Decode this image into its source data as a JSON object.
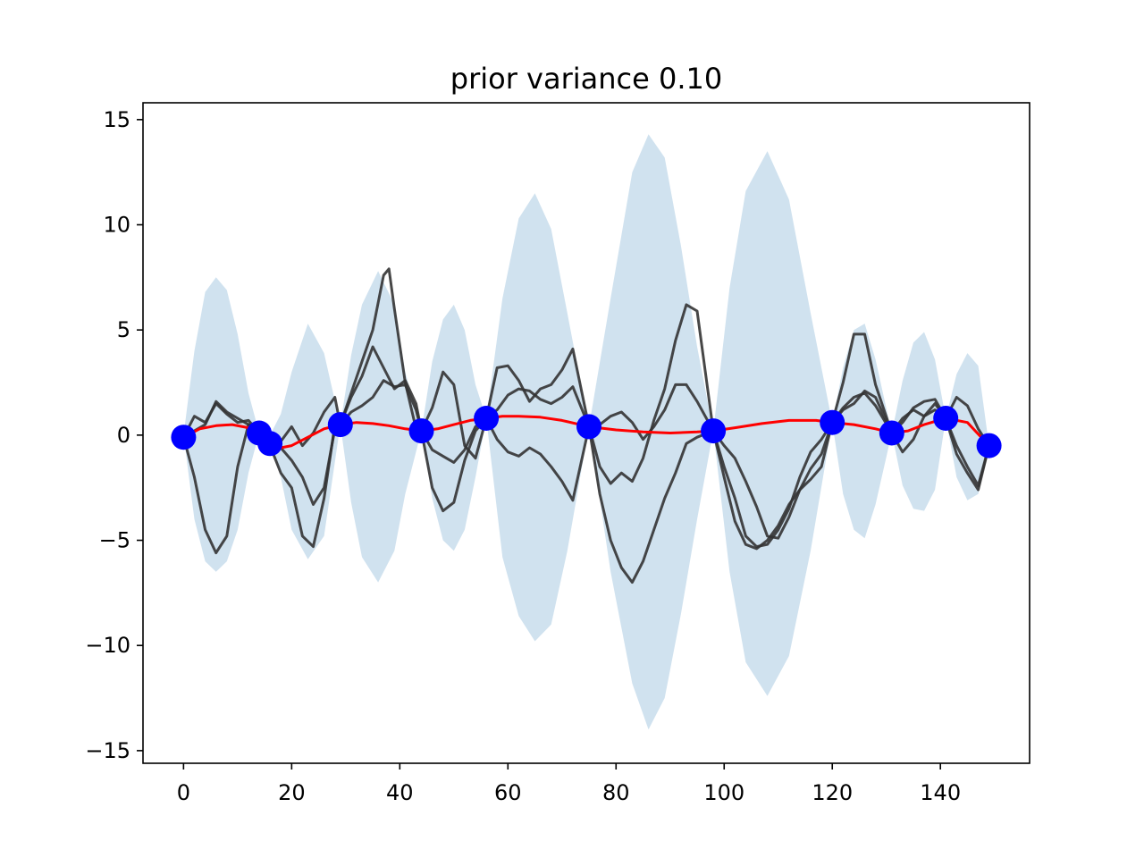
{
  "chart_data": {
    "type": "line",
    "title": "prior variance 0.10",
    "xlabel": "",
    "ylabel": "",
    "xlim": [
      -7.5,
      156.5
    ],
    "ylim": [
      -15.6,
      15.8
    ],
    "x_ticks": [
      0,
      20,
      40,
      60,
      80,
      100,
      120,
      140
    ],
    "y_ticks": [
      -15,
      -10,
      -5,
      0,
      5,
      10,
      15
    ],
    "x_tick_labels": [
      "0",
      "20",
      "40",
      "60",
      "80",
      "100",
      "120",
      "140"
    ],
    "y_tick_labels": [
      "−15",
      "−10",
      "−5",
      "0",
      "5",
      "10",
      "15"
    ],
    "grid": false,
    "legend": "none",
    "colors": {
      "band": "#d0e2ef",
      "mean": "#ff0000",
      "samples": "#333333",
      "observations": "#0000ff"
    },
    "observations": {
      "x": [
        0,
        14,
        16,
        29,
        44,
        56,
        75,
        98,
        120,
        131,
        141,
        149
      ],
      "y": [
        -0.1,
        0.1,
        -0.4,
        0.5,
        0.2,
        0.8,
        0.4,
        0.2,
        0.6,
        0.1,
        0.8,
        -0.5
      ]
    },
    "uncertainty_band": {
      "x": [
        0,
        1,
        2,
        4,
        6,
        8,
        10,
        12,
        14,
        16,
        18,
        20,
        23,
        26,
        29,
        31,
        33,
        36,
        39,
        41,
        44,
        46,
        48,
        50,
        52,
        54,
        56,
        59,
        62,
        65,
        68,
        71,
        75,
        79,
        83,
        86,
        89,
        92,
        95,
        98,
        101,
        104,
        108,
        112,
        116,
        120,
        122,
        124,
        126,
        128,
        131,
        133,
        135,
        137,
        139,
        141,
        143,
        145,
        147,
        149
      ],
      "upper": [
        0,
        2,
        4,
        6.8,
        7.5,
        6.9,
        4.8,
        2,
        0.1,
        0,
        1,
        3,
        5.3,
        3.9,
        0.5,
        3.8,
        6.2,
        7.8,
        6.2,
        3,
        0.2,
        3.5,
        5.5,
        6.2,
        5,
        2.4,
        0.8,
        6.5,
        10.3,
        11.5,
        9.8,
        5.8,
        0.4,
        6.5,
        12.5,
        14.3,
        13.2,
        9,
        4.2,
        0.2,
        7,
        11.6,
        13.5,
        11.2,
        5.8,
        0.6,
        3.2,
        5,
        5.3,
        3.6,
        0.1,
        2.6,
        4.4,
        4.9,
        3.6,
        0.8,
        2.9,
        3.9,
        3.3,
        -0.5
      ],
      "lower": [
        0,
        -2,
        -4,
        -6,
        -6.5,
        -6,
        -4.5,
        -1.8,
        0.1,
        -0.4,
        -2,
        -4.5,
        -5.9,
        -4.8,
        0.5,
        -3.2,
        -5.8,
        -7,
        -5.5,
        -2.8,
        0.2,
        -3,
        -5,
        -5.5,
        -4.5,
        -2,
        0.8,
        -5.8,
        -8.6,
        -9.8,
        -9,
        -5.5,
        0.4,
        -6.5,
        -11.8,
        -14,
        -12.5,
        -8.5,
        -4,
        0.2,
        -6.5,
        -10.8,
        -12.4,
        -10.5,
        -5.5,
        0.6,
        -2.8,
        -4.5,
        -4.9,
        -3.3,
        0.1,
        -2.4,
        -3.5,
        -3.6,
        -2.6,
        0.8,
        -2,
        -3.1,
        -2.8,
        -0.5
      ]
    },
    "series": [
      {
        "role": "mean",
        "x": [
          0,
          3,
          6,
          9,
          12,
          14,
          16,
          18,
          20,
          23,
          26,
          29,
          32,
          35,
          38,
          41,
          44,
          47,
          50,
          53,
          56,
          59,
          62,
          66,
          70,
          75,
          80,
          85,
          90,
          95,
          98,
          102,
          107,
          112,
          117,
          120,
          124,
          128,
          131,
          134,
          137,
          141,
          145,
          149
        ],
        "y": [
          -0.1,
          0.3,
          0.45,
          0.5,
          0.35,
          0.1,
          -0.4,
          -0.6,
          -0.5,
          -0.1,
          0.3,
          0.5,
          0.6,
          0.55,
          0.45,
          0.3,
          0.2,
          0.3,
          0.5,
          0.7,
          0.8,
          0.9,
          0.9,
          0.85,
          0.7,
          0.4,
          0.25,
          0.15,
          0.1,
          0.15,
          0.2,
          0.35,
          0.55,
          0.7,
          0.7,
          0.6,
          0.5,
          0.3,
          0.1,
          0.2,
          0.5,
          0.8,
          0.6,
          -0.5
        ]
      },
      {
        "role": "sample",
        "x": [
          0,
          2,
          4,
          6,
          8,
          10,
          12,
          14,
          16,
          18,
          20,
          22,
          24,
          26,
          28,
          29,
          31,
          33,
          35,
          37,
          38,
          39,
          41,
          43,
          44,
          46,
          48,
          50,
          52,
          54,
          56,
          58,
          60,
          62,
          64,
          66,
          68,
          70,
          72,
          75,
          77,
          79,
          81,
          83,
          85,
          87,
          89,
          91,
          93,
          95,
          98,
          100,
          102,
          104,
          106,
          108,
          110,
          112,
          114,
          116,
          118,
          120,
          122,
          124,
          126,
          128,
          131,
          133,
          135,
          137,
          139,
          141,
          143,
          145,
          147,
          149
        ],
        "y": [
          -0.1,
          -2,
          -4.5,
          -5.6,
          -4.8,
          -1.5,
          0.5,
          0.2,
          -0.5,
          -1.8,
          -2.5,
          -4.8,
          -5.3,
          -3,
          0.5,
          0.5,
          2,
          3.5,
          5,
          7.6,
          7.9,
          6,
          2.5,
          0.3,
          0.2,
          -2.5,
          -3.6,
          -3.2,
          -1.2,
          0.2,
          0.8,
          1.2,
          1.9,
          2.2,
          2.1,
          1.7,
          1.5,
          1.8,
          2.3,
          0.4,
          -2.8,
          -5,
          -6.3,
          -7,
          -6,
          -4.5,
          -3,
          -1.8,
          -0.4,
          -0.1,
          0.2,
          -1.5,
          -3,
          -4.8,
          -5.3,
          -5.2,
          -4.5,
          -3.5,
          -2,
          -0.8,
          -0.2,
          0.6,
          1.2,
          1.5,
          2.1,
          1.8,
          0.1,
          0.8,
          1.2,
          0.9,
          1.5,
          0.8,
          -0.5,
          -1.5,
          -2.4,
          -0.5
        ]
      },
      {
        "role": "sample",
        "x": [
          0,
          2,
          4,
          6,
          8,
          10,
          12,
          14,
          16,
          18,
          20,
          22,
          24,
          26,
          28,
          29,
          31,
          33,
          35,
          37,
          39,
          41,
          43,
          44,
          46,
          48,
          50,
          52,
          54,
          56,
          58,
          60,
          62,
          64,
          66,
          68,
          70,
          72,
          75,
          77,
          79,
          81,
          83,
          85,
          87,
          89,
          91,
          93,
          95,
          98,
          100,
          102,
          104,
          106,
          108,
          110,
          112,
          114,
          116,
          118,
          120,
          122,
          124,
          126,
          128,
          131,
          133,
          135,
          137,
          139,
          141,
          143,
          145,
          147,
          149
        ],
        "y": [
          -0.1,
          0.9,
          0.6,
          1.5,
          1.0,
          0.6,
          0.7,
          0.1,
          -0.2,
          -0.3,
          0.4,
          -0.5,
          0.1,
          1.1,
          1.8,
          0.5,
          1.8,
          2.8,
          4.2,
          3.2,
          2.2,
          2.6,
          1.5,
          0.2,
          1.3,
          3.0,
          2.4,
          -0.5,
          -1.1,
          0.8,
          3.2,
          3.3,
          2.6,
          1.6,
          2.2,
          2.4,
          3.1,
          4.1,
          0.4,
          -1.5,
          -2.3,
          -1.8,
          -2.2,
          -1.1,
          0.7,
          2.2,
          4.5,
          6.2,
          5.9,
          0.2,
          -2.0,
          -4.1,
          -5.2,
          -5.4,
          -5.0,
          -4.3,
          -3.3,
          -2.6,
          -1.6,
          -0.9,
          0.6,
          2.5,
          4.8,
          4.8,
          2.4,
          0.1,
          0.6,
          1.3,
          1.6,
          1.7,
          0.8,
          -0.9,
          -1.8,
          -2.6,
          -0.5
        ]
      },
      {
        "role": "sample",
        "x": [
          0,
          2,
          4,
          6,
          8,
          10,
          12,
          14,
          16,
          18,
          20,
          22,
          24,
          26,
          28,
          29,
          31,
          33,
          35,
          37,
          39,
          41,
          43,
          44,
          46,
          48,
          50,
          52,
          54,
          56,
          58,
          60,
          62,
          64,
          66,
          68,
          70,
          72,
          75,
          77,
          79,
          81,
          83,
          85,
          87,
          89,
          91,
          93,
          95,
          98,
          100,
          102,
          104,
          106,
          108,
          110,
          112,
          114,
          116,
          118,
          120,
          122,
          124,
          126,
          128,
          131,
          133,
          135,
          137,
          139,
          141,
          143,
          145,
          147,
          149
        ],
        "y": [
          -0.1,
          0.2,
          0.5,
          1.6,
          1.1,
          0.8,
          0.5,
          0.3,
          -0.3,
          -0.6,
          -1.2,
          -2.0,
          -3.3,
          -2.5,
          0.3,
          0.5,
          1.1,
          1.4,
          1.8,
          2.6,
          2.3,
          2.4,
          1.2,
          0.2,
          -0.7,
          -1.0,
          -1.3,
          -0.7,
          0.4,
          0.8,
          -0.2,
          -0.8,
          -1.0,
          -0.6,
          -0.9,
          -1.5,
          -2.2,
          -3.1,
          0.4,
          0.5,
          0.9,
          1.1,
          0.6,
          -0.2,
          0.4,
          1.2,
          2.4,
          2.4,
          1.6,
          0.2,
          -0.5,
          -1.1,
          -2.2,
          -3.4,
          -4.8,
          -4.9,
          -3.9,
          -2.6,
          -2.1,
          -1.5,
          0.6,
          1.3,
          1.8,
          2.0,
          1.4,
          0.1,
          -0.8,
          -0.2,
          0.9,
          1.2,
          0.8,
          1.8,
          1.4,
          0.3,
          -0.5
        ]
      }
    ]
  }
}
